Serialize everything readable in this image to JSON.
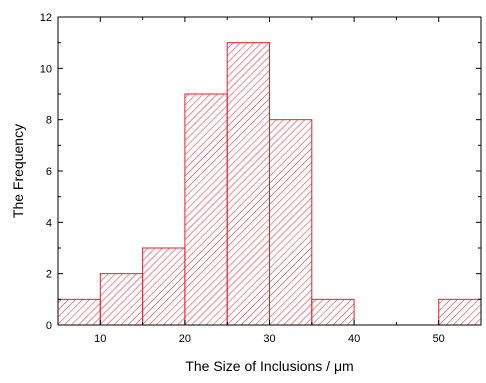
{
  "chart_data": {
    "type": "bar",
    "bins": [
      {
        "from": 5,
        "to": 10,
        "value": 1
      },
      {
        "from": 10,
        "to": 15,
        "value": 2
      },
      {
        "from": 15,
        "to": 20,
        "value": 3
      },
      {
        "from": 20,
        "to": 25,
        "value": 9
      },
      {
        "from": 25,
        "to": 30,
        "value": 11
      },
      {
        "from": 30,
        "to": 35,
        "value": 8
      },
      {
        "from": 35,
        "to": 40,
        "value": 1
      },
      {
        "from": 50,
        "to": 55,
        "value": 1
      }
    ],
    "title": "",
    "xlabel": "The Size of Inclusions / μm",
    "ylabel": "The Frequency",
    "xlim": [
      5,
      55
    ],
    "ylim": [
      0,
      12
    ],
    "x_ticks": [
      "10",
      "20",
      "30",
      "40",
      "50"
    ],
    "y_ticks": [
      "0",
      "2",
      "4",
      "6",
      "8",
      "10",
      "12"
    ],
    "grid": false,
    "legend": "none",
    "bar_color": "#e8202a",
    "fill": "diagonal hatch"
  }
}
